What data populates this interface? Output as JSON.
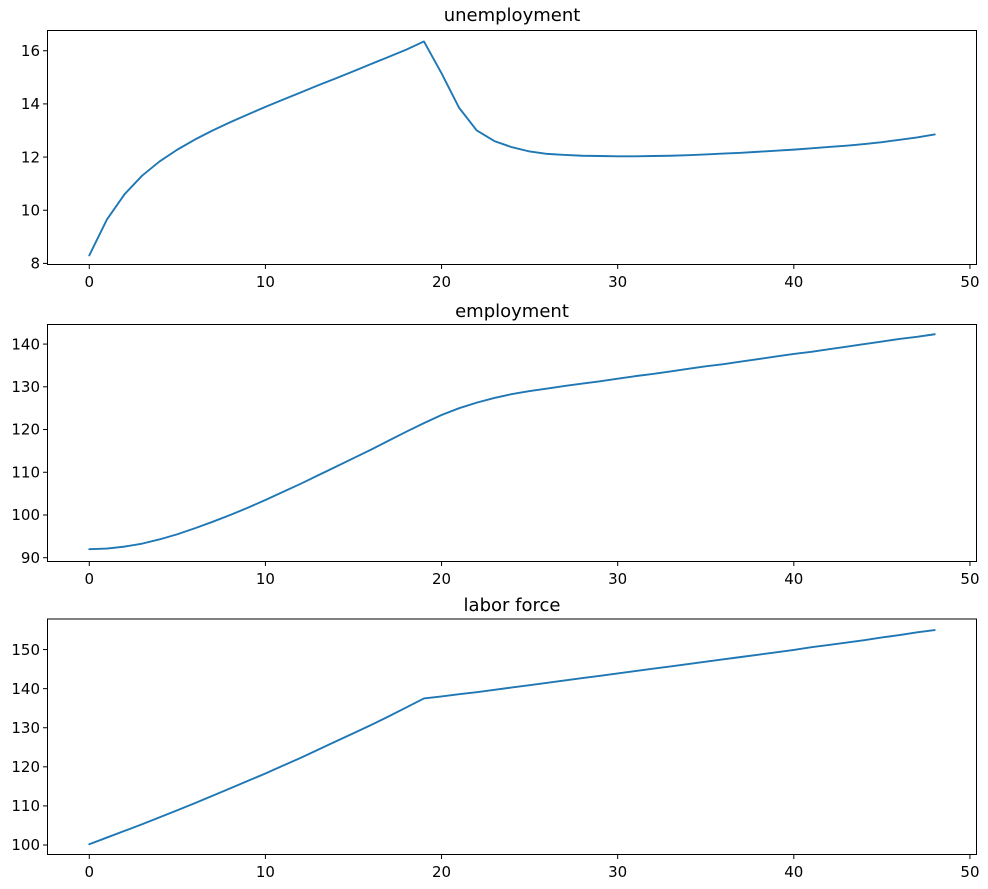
{
  "figure": {
    "background": "#ffffff",
    "text_color": "#000000",
    "axes_edge_color": "#000000",
    "line_color": "#1f77b4"
  },
  "chart_data": [
    {
      "id": "unemployment",
      "type": "line",
      "title": "unemployment",
      "line_color": "#1f77b4",
      "grid": false,
      "legend": null,
      "xlim": [
        -2.4,
        50.4
      ],
      "ylim": [
        7.94,
        16.78
      ],
      "xticks": [
        0,
        10,
        20,
        30,
        40,
        50
      ],
      "yticks": [
        8,
        10,
        12,
        14,
        16
      ],
      "x": [
        0,
        1,
        2,
        3,
        4,
        5,
        6,
        7,
        8,
        9,
        10,
        11,
        12,
        13,
        14,
        15,
        16,
        17,
        18,
        19,
        20,
        21,
        22,
        23,
        24,
        25,
        26,
        27,
        28,
        29,
        30,
        31,
        32,
        33,
        34,
        35,
        36,
        37,
        38,
        39,
        40,
        41,
        42,
        43,
        44,
        45,
        46,
        47,
        48
      ],
      "values": [
        8.3,
        9.65,
        10.6,
        11.3,
        11.84,
        12.28,
        12.66,
        13.0,
        13.31,
        13.6,
        13.89,
        14.16,
        14.43,
        14.7,
        14.96,
        15.23,
        15.5,
        15.77,
        16.04,
        16.35,
        15.15,
        13.85,
        13.0,
        12.6,
        12.37,
        12.21,
        12.12,
        12.08,
        12.05,
        12.04,
        12.03,
        12.03,
        12.04,
        12.05,
        12.07,
        12.1,
        12.13,
        12.16,
        12.2,
        12.24,
        12.28,
        12.33,
        12.38,
        12.43,
        12.49,
        12.56,
        12.65,
        12.74,
        12.85
      ]
    },
    {
      "id": "employment",
      "type": "line",
      "title": "employment",
      "line_color": "#1f77b4",
      "grid": false,
      "legend": null,
      "xlim": [
        -2.4,
        50.4
      ],
      "ylim": [
        89.0,
        144.7
      ],
      "xticks": [
        0,
        10,
        20,
        30,
        40,
        50
      ],
      "yticks": [
        90,
        100,
        110,
        120,
        130,
        140
      ],
      "x": [
        0,
        1,
        2,
        3,
        4,
        5,
        6,
        7,
        8,
        9,
        10,
        11,
        12,
        13,
        14,
        15,
        16,
        17,
        18,
        19,
        20,
        21,
        22,
        23,
        24,
        25,
        26,
        27,
        28,
        29,
        30,
        31,
        32,
        33,
        34,
        35,
        36,
        37,
        38,
        39,
        40,
        41,
        42,
        43,
        44,
        45,
        46,
        47,
        48
      ],
      "values": [
        92.0,
        92.15,
        92.6,
        93.3,
        94.3,
        95.5,
        96.9,
        98.4,
        100.0,
        101.7,
        103.5,
        105.4,
        107.3,
        109.3,
        111.3,
        113.3,
        115.3,
        117.4,
        119.5,
        121.5,
        123.4,
        125.0,
        126.3,
        127.4,
        128.3,
        129.0,
        129.6,
        130.2,
        130.75,
        131.3,
        131.9,
        132.5,
        133.0,
        133.6,
        134.2,
        134.8,
        135.3,
        135.9,
        136.5,
        137.1,
        137.7,
        138.2,
        138.8,
        139.4,
        140.0,
        140.6,
        141.2,
        141.7,
        142.3
      ]
    },
    {
      "id": "labor-force",
      "type": "line",
      "title": "labor force",
      "line_color": "#1f77b4",
      "grid": false,
      "legend": null,
      "xlim": [
        -2.4,
        50.4
      ],
      "ylim": [
        97.44,
        157.95
      ],
      "xticks": [
        0,
        10,
        20,
        30,
        40,
        50
      ],
      "yticks": [
        100,
        110,
        120,
        130,
        140,
        150
      ],
      "x": [
        0,
        1,
        2,
        3,
        4,
        5,
        6,
        7,
        8,
        9,
        10,
        11,
        12,
        13,
        14,
        15,
        16,
        17,
        18,
        19,
        20,
        21,
        22,
        23,
        24,
        25,
        26,
        27,
        28,
        29,
        30,
        31,
        32,
        33,
        34,
        35,
        36,
        37,
        38,
        39,
        40,
        41,
        42,
        43,
        44,
        45,
        46,
        47,
        48
      ],
      "values": [
        100.2,
        101.9,
        103.6,
        105.3,
        107.1,
        108.9,
        110.7,
        112.6,
        114.5,
        116.4,
        118.3,
        120.3,
        122.3,
        124.4,
        126.5,
        128.6,
        130.7,
        132.9,
        135.2,
        137.5,
        138.0,
        138.6,
        139.1,
        139.7,
        140.3,
        140.9,
        141.5,
        142.1,
        142.7,
        143.3,
        143.9,
        144.5,
        145.1,
        145.7,
        146.3,
        146.9,
        147.5,
        148.1,
        148.7,
        149.3,
        149.9,
        150.6,
        151.2,
        151.8,
        152.4,
        153.1,
        153.7,
        154.4,
        155.0
      ]
    }
  ]
}
